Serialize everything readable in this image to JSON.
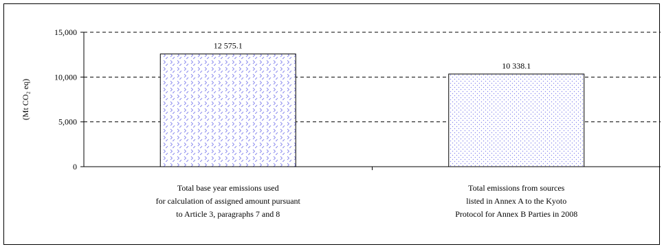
{
  "chart_data": {
    "type": "bar",
    "categories": [
      [
        "Total base year emissions used",
        "for calculation of assigned amount pursuant",
        "to Article 3, paragraphs 7 and 8"
      ],
      [
        "Total emissions from sources",
        "listed in Annex A to the Kyoto",
        "Protocol for Annex B Parties in 2008"
      ]
    ],
    "values": [
      12575.1,
      10338.1
    ],
    "value_labels": [
      "12 575.1",
      "10 338.1"
    ],
    "ylabel": "(Mt CO₂ eq)",
    "ylim": [
      0,
      15000
    ],
    "yticks": [
      0,
      5000,
      10000,
      15000
    ],
    "ytick_labels": [
      "0",
      "5,000",
      "10,000",
      "15,000"
    ],
    "grid": true,
    "bar_fill": "#ffffff",
    "bar_pattern_color": "#8888ee",
    "colors": {
      "axis": "#000000",
      "gridline": "#000000"
    }
  }
}
